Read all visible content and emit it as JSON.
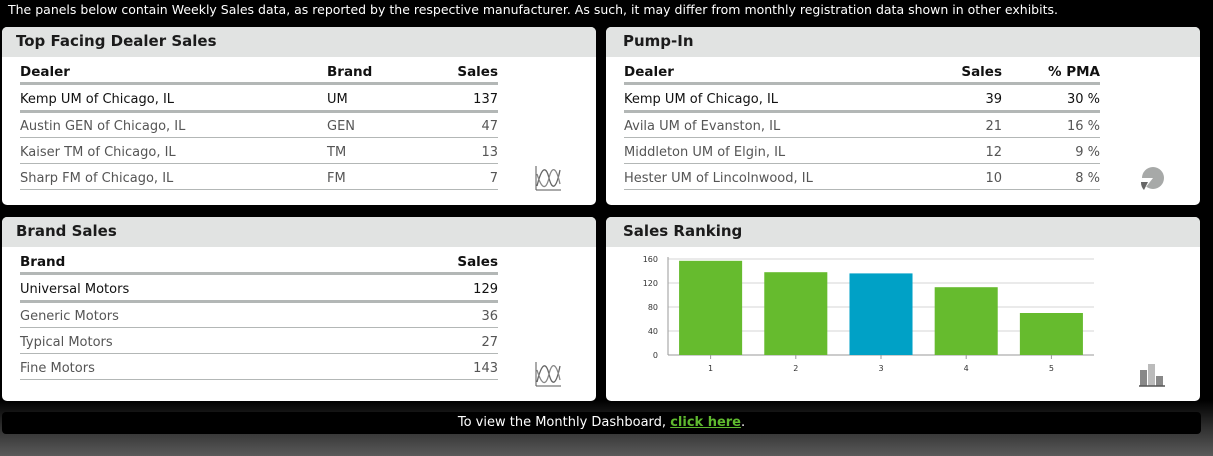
{
  "notice": "The panels below contain Weekly Sales data, as reported by the respective manufacturer. As such, it may differ from monthly registration data shown in other exhibits.",
  "top_dealer": {
    "title": "Top Facing Dealer Sales",
    "headers": [
      "Dealer",
      "Brand",
      "Sales"
    ],
    "rows": [
      [
        "Kemp UM of Chicago, IL",
        "UM",
        "137"
      ],
      [
        "Austin GEN of Chicago, IL",
        "GEN",
        "47"
      ],
      [
        "Kaiser TM of Chicago, IL",
        "TM",
        "13"
      ],
      [
        "Sharp FM of Chicago, IL",
        "FM",
        "7"
      ]
    ],
    "icon": "line-chart-icon"
  },
  "pump_in": {
    "title": "Pump-In",
    "headers": [
      "Dealer",
      "Sales",
      "% PMA"
    ],
    "rows": [
      [
        "Kemp UM of Chicago, IL",
        "39",
        "30 %"
      ],
      [
        "Avila UM of Evanston, IL",
        "21",
        "16 %"
      ],
      [
        "Middleton UM of Elgin, IL",
        "12",
        "9 %"
      ],
      [
        "Hester UM of Lincolnwood, IL",
        "10",
        "8 %"
      ]
    ],
    "icon": "pie-chart-icon"
  },
  "brand_sales": {
    "title": "Brand Sales",
    "headers": [
      "Brand",
      "Sales"
    ],
    "rows": [
      [
        "Universal Motors",
        "129"
      ],
      [
        "Generic Motors",
        "36"
      ],
      [
        "Typical Motors",
        "27"
      ],
      [
        "Fine Motors",
        "143"
      ]
    ],
    "icon": "line-chart-icon"
  },
  "sales_ranking": {
    "title": "Sales Ranking",
    "icon": "bar-chart-icon"
  },
  "chart_data": {
    "type": "bar",
    "categories": [
      "1",
      "2",
      "3",
      "4",
      "5"
    ],
    "values": [
      157,
      138,
      136,
      113,
      70
    ],
    "colors": [
      "#66bb2e",
      "#66bb2e",
      "#00a1c6",
      "#66bb2e",
      "#66bb2e"
    ],
    "yticks": [
      0,
      40,
      80,
      120,
      160
    ],
    "ylim": [
      0,
      160
    ],
    "grid": true
  },
  "footer": {
    "text_before": "To view the Monthly Dashboard, ",
    "link": "click here",
    "text_after": "."
  }
}
